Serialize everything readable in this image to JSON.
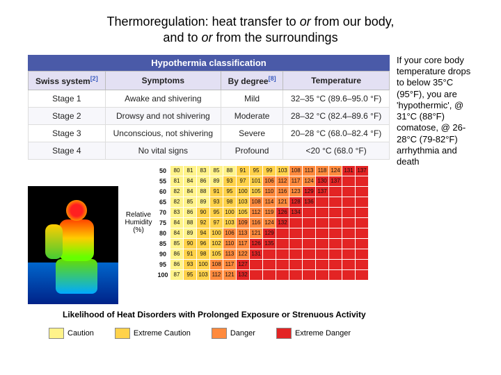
{
  "title_line1": "Thermoregulation: heat transfer to ",
  "title_or1": "or",
  "title_line1b": " from our body,",
  "title_line2a": "and to ",
  "title_or2": "or",
  "title_line2b": " from the surroundings",
  "classification": {
    "caption": "Hypothermia classification",
    "headers": [
      "Swiss system",
      "Symptoms",
      "By degree",
      "Temperature"
    ],
    "header_refs": [
      "[2]",
      "",
      "[8]",
      ""
    ],
    "rows": [
      [
        "Stage 1",
        "Awake and shivering",
        "Mild",
        "32–35 °C (89.6–95.0 °F)"
      ],
      [
        "Stage 2",
        "Drowsy and not shivering",
        "Moderate",
        "28–32 °C (82.4–89.6 °F)"
      ],
      [
        "Stage 3",
        "Unconscious, not shivering",
        "Severe",
        "20–28 °C (68.0–82.4 °F)"
      ],
      [
        "Stage 4",
        "No vital signs",
        "Profound",
        "<20 °C (68.0 °F)"
      ]
    ]
  },
  "sidetext": "If your core body temperature drops to below 35°C (95°F), you are 'hypothermic', @ 31°C (88°F) comatose, @ 26-28°C (79-82°F) arrhythmia and death",
  "rh_label": "Relative Humidity (%)",
  "heat": {
    "row_labels": [
      "50",
      "55",
      "60",
      "65",
      "70",
      "75",
      "80",
      "85",
      "90",
      "95",
      "100"
    ],
    "colors": {
      "caution": "#fff38a",
      "extreme": "#ffd24a",
      "danger": "#ff8a3d",
      "extreme_danger": "#e32424"
    },
    "grid": [
      {
        "r": "50",
        "cells": [
          [
            "80",
            "c"
          ],
          [
            "81",
            "c"
          ],
          [
            "83",
            "c"
          ],
          [
            "85",
            "c"
          ],
          [
            "88",
            "c"
          ],
          [
            "91",
            "e"
          ],
          [
            "95",
            "e"
          ],
          [
            "99",
            "e"
          ],
          [
            "103",
            "e"
          ],
          [
            "108",
            "d"
          ],
          [
            "113",
            "d"
          ],
          [
            "118",
            "d"
          ],
          [
            "124",
            "d"
          ],
          [
            "131",
            "x"
          ],
          [
            "137",
            "x"
          ]
        ]
      },
      {
        "r": "55",
        "cells": [
          [
            "81",
            "c"
          ],
          [
            "84",
            "c"
          ],
          [
            "86",
            "c"
          ],
          [
            "89",
            "c"
          ],
          [
            "93",
            "e"
          ],
          [
            "97",
            "e"
          ],
          [
            "101",
            "e"
          ],
          [
            "106",
            "d"
          ],
          [
            "112",
            "d"
          ],
          [
            "117",
            "d"
          ],
          [
            "124",
            "d"
          ],
          [
            "130",
            "x"
          ],
          [
            "137",
            "x"
          ],
          [
            "",
            ""
          ],
          [
            "",
            ""
          ]
        ]
      },
      {
        "r": "60",
        "cells": [
          [
            "82",
            "c"
          ],
          [
            "84",
            "c"
          ],
          [
            "88",
            "c"
          ],
          [
            "91",
            "e"
          ],
          [
            "95",
            "e"
          ],
          [
            "100",
            "e"
          ],
          [
            "105",
            "e"
          ],
          [
            "110",
            "d"
          ],
          [
            "116",
            "d"
          ],
          [
            "123",
            "d"
          ],
          [
            "129",
            "x"
          ],
          [
            "137",
            "x"
          ],
          [
            "",
            ""
          ],
          [
            "",
            ""
          ],
          [
            "",
            ""
          ]
        ]
      },
      {
        "r": "65",
        "cells": [
          [
            "82",
            "c"
          ],
          [
            "85",
            "c"
          ],
          [
            "89",
            "c"
          ],
          [
            "93",
            "e"
          ],
          [
            "98",
            "e"
          ],
          [
            "103",
            "e"
          ],
          [
            "108",
            "d"
          ],
          [
            "114",
            "d"
          ],
          [
            "121",
            "d"
          ],
          [
            "128",
            "x"
          ],
          [
            "136",
            "x"
          ],
          [
            "",
            ""
          ],
          [
            "",
            ""
          ],
          [
            "",
            ""
          ],
          [
            "",
            ""
          ]
        ]
      },
      {
        "r": "70",
        "cells": [
          [
            "83",
            "c"
          ],
          [
            "86",
            "c"
          ],
          [
            "90",
            "e"
          ],
          [
            "95",
            "e"
          ],
          [
            "100",
            "e"
          ],
          [
            "105",
            "e"
          ],
          [
            "112",
            "d"
          ],
          [
            "119",
            "d"
          ],
          [
            "126",
            "x"
          ],
          [
            "134",
            "x"
          ],
          [
            "",
            ""
          ],
          [
            "",
            ""
          ],
          [
            "",
            ""
          ],
          [
            "",
            ""
          ],
          [
            "",
            ""
          ]
        ]
      },
      {
        "r": "75",
        "cells": [
          [
            "84",
            "c"
          ],
          [
            "88",
            "c"
          ],
          [
            "92",
            "e"
          ],
          [
            "97",
            "e"
          ],
          [
            "103",
            "e"
          ],
          [
            "109",
            "d"
          ],
          [
            "116",
            "d"
          ],
          [
            "124",
            "d"
          ],
          [
            "132",
            "x"
          ],
          [
            "",
            ""
          ],
          [
            "",
            ""
          ],
          [
            "",
            ""
          ],
          [
            "",
            ""
          ],
          [
            "",
            ""
          ],
          [
            "",
            ""
          ]
        ]
      },
      {
        "r": "80",
        "cells": [
          [
            "84",
            "c"
          ],
          [
            "89",
            "c"
          ],
          [
            "94",
            "e"
          ],
          [
            "100",
            "e"
          ],
          [
            "106",
            "d"
          ],
          [
            "113",
            "d"
          ],
          [
            "121",
            "d"
          ],
          [
            "129",
            "x"
          ],
          [
            "",
            ""
          ],
          [
            "",
            ""
          ],
          [
            "",
            ""
          ],
          [
            "",
            ""
          ],
          [
            "",
            ""
          ],
          [
            "",
            ""
          ],
          [
            "",
            ""
          ]
        ]
      },
      {
        "r": "85",
        "cells": [
          [
            "85",
            "c"
          ],
          [
            "90",
            "e"
          ],
          [
            "96",
            "e"
          ],
          [
            "102",
            "e"
          ],
          [
            "110",
            "d"
          ],
          [
            "117",
            "d"
          ],
          [
            "126",
            "x"
          ],
          [
            "135",
            "x"
          ],
          [
            "",
            ""
          ],
          [
            "",
            ""
          ],
          [
            "",
            ""
          ],
          [
            "",
            ""
          ],
          [
            "",
            ""
          ],
          [
            "",
            ""
          ],
          [
            "",
            ""
          ]
        ]
      },
      {
        "r": "90",
        "cells": [
          [
            "86",
            "c"
          ],
          [
            "91",
            "e"
          ],
          [
            "98",
            "e"
          ],
          [
            "105",
            "e"
          ],
          [
            "113",
            "d"
          ],
          [
            "122",
            "d"
          ],
          [
            "131",
            "x"
          ],
          [
            "",
            ""
          ],
          [
            "",
            ""
          ],
          [
            "",
            ""
          ],
          [
            "",
            ""
          ],
          [
            "",
            ""
          ],
          [
            "",
            ""
          ],
          [
            "",
            ""
          ],
          [
            "",
            ""
          ]
        ]
      },
      {
        "r": "95",
        "cells": [
          [
            "86",
            "c"
          ],
          [
            "93",
            "e"
          ],
          [
            "100",
            "e"
          ],
          [
            "108",
            "d"
          ],
          [
            "117",
            "d"
          ],
          [
            "127",
            "x"
          ],
          [
            "",
            ""
          ],
          [
            "",
            ""
          ],
          [
            "",
            ""
          ],
          [
            "",
            ""
          ],
          [
            "",
            ""
          ],
          [
            "",
            ""
          ],
          [
            "",
            ""
          ],
          [
            "",
            ""
          ],
          [
            "",
            ""
          ]
        ]
      },
      {
        "r": "100",
        "cells": [
          [
            "87",
            "c"
          ],
          [
            "95",
            "e"
          ],
          [
            "103",
            "e"
          ],
          [
            "112",
            "d"
          ],
          [
            "121",
            "d"
          ],
          [
            "132",
            "x"
          ],
          [
            "",
            ""
          ],
          [
            "",
            ""
          ],
          [
            "",
            ""
          ],
          [
            "",
            ""
          ],
          [
            "",
            ""
          ],
          [
            "",
            ""
          ],
          [
            "",
            ""
          ],
          [
            "",
            ""
          ],
          [
            "",
            ""
          ]
        ]
      }
    ]
  },
  "caption2": "Likelihood of Heat Disorders with Prolonged Exposure or Strenuous Activity",
  "legend": [
    {
      "label": "Caution",
      "key": "caution"
    },
    {
      "label": "Extreme Caution",
      "key": "extreme"
    },
    {
      "label": "Danger",
      "key": "danger"
    },
    {
      "label": "Extreme Danger",
      "key": "extreme_danger"
    }
  ]
}
